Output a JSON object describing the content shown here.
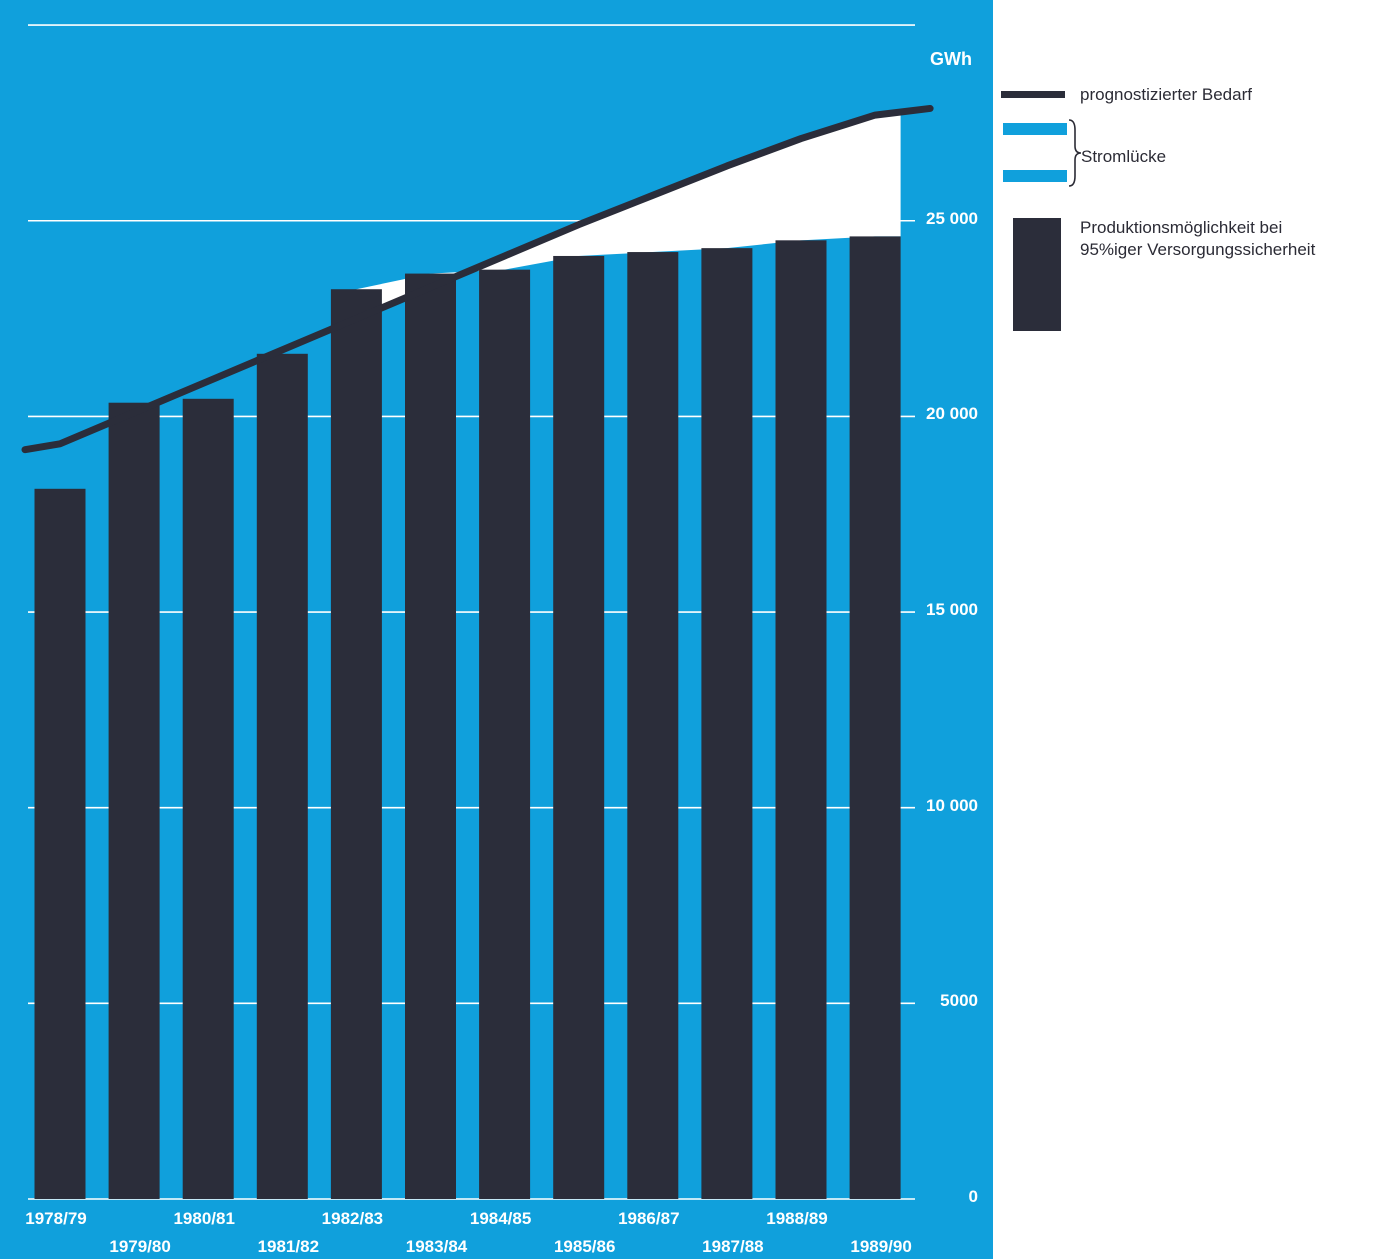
{
  "chart_data": {
    "type": "bar",
    "unit": "GWh",
    "categories": [
      "1978/79",
      "1979/80",
      "1980/81",
      "1981/82",
      "1982/83",
      "1983/84",
      "1984/85",
      "1985/86",
      "1986/87",
      "1987/88",
      "1988/89",
      "1989/90"
    ],
    "series": [
      {
        "name": "Produktionsmöglichkeit bei 95%iger Versorgungssicherheit",
        "type": "bar",
        "values": [
          18150,
          20350,
          20450,
          21600,
          23250,
          23650,
          23750,
          24100,
          24200,
          24300,
          24500,
          24600
        ]
      },
      {
        "name": "prognostizierter Bedarf",
        "type": "line",
        "values": [
          19300,
          20100,
          20900,
          21700,
          22500,
          23300,
          24100,
          24900,
          25650,
          26400,
          27100,
          27700
        ]
      }
    ],
    "gap_label": "Stromlücke",
    "yticks": [
      0,
      5000,
      10000,
      15000,
      20000,
      25000
    ],
    "ytick_labels": [
      "0",
      "5000",
      "10 000",
      "15 000",
      "20 000",
      "25 000"
    ],
    "ylim": [
      0,
      30000
    ],
    "grid": true,
    "legend_position": "right",
    "colors": {
      "background": "#10a0dc",
      "bar": "#2b2d3a",
      "demand_line": "#2b2d3a",
      "gap": "#ffffff",
      "grid": "#ffffff"
    }
  },
  "legend": {
    "demand": "prognostizierter Bedarf",
    "gap": "Stromlücke",
    "production_line1": "Produktionsmöglichkeit bei",
    "production_line2": "95%iger Versorgungssicherheit"
  }
}
